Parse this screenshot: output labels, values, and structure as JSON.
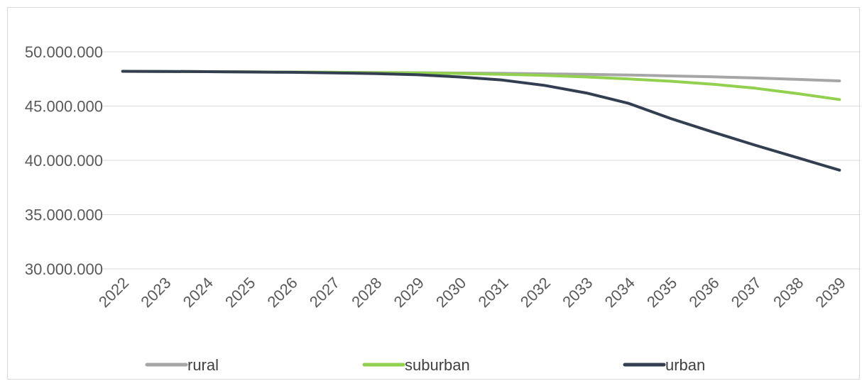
{
  "chart_data": {
    "type": "line",
    "title": "",
    "xlabel": "",
    "ylabel": "",
    "categories": [
      "2022",
      "2023",
      "2024",
      "2025",
      "2026",
      "2027",
      "2028",
      "2029",
      "2030",
      "2031",
      "2032",
      "2033",
      "2034",
      "2035",
      "2036",
      "2037",
      "2038",
      "2039"
    ],
    "ylim": [
      30000000,
      50000000
    ],
    "y_ticks": [
      30000000,
      35000000,
      40000000,
      45000000,
      50000000
    ],
    "y_tick_labels": [
      "30.000.000",
      "35.000.000",
      "40.000.000",
      "45.000.000",
      "50.000.000"
    ],
    "grid": true,
    "legend_position": "bottom",
    "series": [
      {
        "name": "rural",
        "color": "#a6a6a6",
        "values": [
          48200000,
          48190000,
          48170000,
          48150000,
          48130000,
          48110000,
          48090000,
          48070000,
          48040000,
          48010000,
          47970000,
          47920000,
          47860000,
          47780000,
          47690000,
          47590000,
          47460000,
          47320000
        ]
      },
      {
        "name": "suburban",
        "color": "#92d050",
        "values": [
          48200000,
          48190000,
          48170000,
          48150000,
          48130000,
          48110000,
          48080000,
          48050000,
          48000000,
          47930000,
          47830000,
          47680000,
          47500000,
          47290000,
          47010000,
          46650000,
          46150000,
          45600000
        ]
      },
      {
        "name": "urban",
        "color": "#333f50",
        "values": [
          48200000,
          48190000,
          48170000,
          48140000,
          48110000,
          48060000,
          47990000,
          47880000,
          47680000,
          47400000,
          46910000,
          46200000,
          45250000,
          43850000,
          42600000,
          41400000,
          40250000,
          39100000
        ]
      }
    ]
  }
}
